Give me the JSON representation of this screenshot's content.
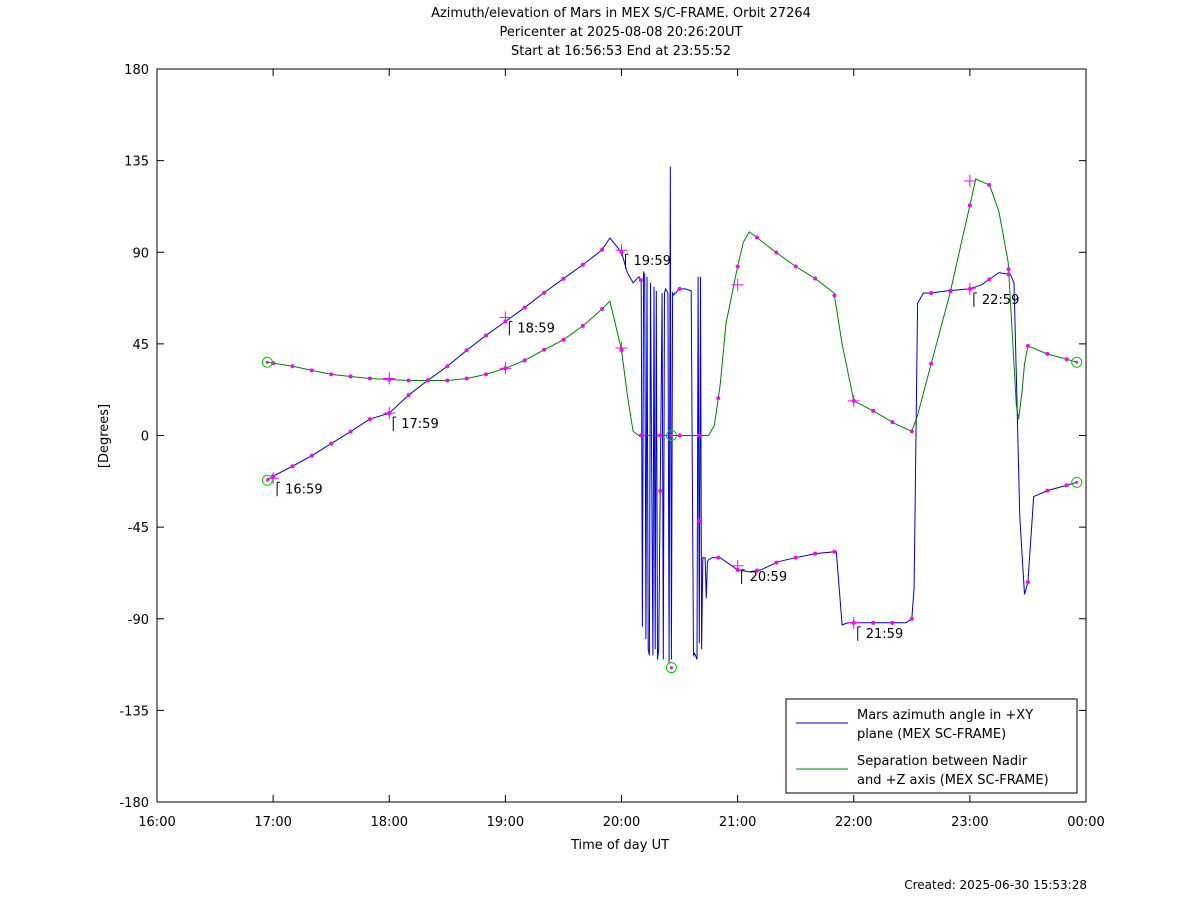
{
  "chart_data": {
    "type": "line",
    "title": [
      "Azimuth/elevation of Mars in MEX S/C-FRAME.  Orbit 27264",
      "Pericenter at 2025-08-08 20:26:20UT",
      "Start at 16:56:53 End at 23:55:52"
    ],
    "xlabel": "Time of day UT",
    "ylabel": "[Degrees]",
    "xlim": [
      16,
      24
    ],
    "ylim": [
      -180,
      180
    ],
    "xticks": [
      {
        "v": 16,
        "label": "16:00"
      },
      {
        "v": 17,
        "label": "17:00"
      },
      {
        "v": 18,
        "label": "18:00"
      },
      {
        "v": 19,
        "label": "19:00"
      },
      {
        "v": 20,
        "label": "20:00"
      },
      {
        "v": 21,
        "label": "21:00"
      },
      {
        "v": 22,
        "label": "22:00"
      },
      {
        "v": 23,
        "label": "23:00"
      },
      {
        "v": 24,
        "label": "00:00"
      }
    ],
    "yticks": [
      {
        "v": 180,
        "label": "180"
      },
      {
        "v": 135,
        "label": "135"
      },
      {
        "v": 90,
        "label": "90"
      },
      {
        "v": 45,
        "label": "45"
      },
      {
        "v": 0,
        "label": "0"
      },
      {
        "v": -45,
        "label": "-45"
      },
      {
        "v": -90,
        "label": "-90"
      },
      {
        "v": -135,
        "label": "-135"
      },
      {
        "v": -180,
        "label": "-180"
      }
    ],
    "legend_placement": "bottom-right",
    "series": [
      {
        "name": "Mars azimuth angle in +XY plane (MEX SC-FRAME)",
        "legend_lines": [
          "Mars azimuth angle in +XY",
          "plane (MEX SC-FRAME)"
        ],
        "color": "#0000cc",
        "x": [
          16.95,
          17.0,
          17.17,
          17.33,
          17.5,
          17.67,
          17.83,
          18.0,
          18.17,
          18.33,
          18.5,
          18.67,
          18.83,
          19.0,
          19.17,
          19.33,
          19.5,
          19.67,
          19.83,
          19.9,
          20.0,
          20.05,
          20.1,
          20.15,
          20.17,
          20.18,
          20.19,
          20.2,
          20.21,
          20.22,
          20.23,
          20.24,
          20.25,
          20.27,
          20.28,
          20.29,
          20.3,
          20.31,
          20.32,
          20.35,
          20.36,
          20.37,
          20.38,
          20.4,
          20.41,
          20.42,
          20.43,
          20.44,
          20.45,
          20.46,
          20.47,
          20.48,
          20.5,
          20.55,
          20.6,
          20.62,
          20.63,
          20.65,
          20.66,
          20.67,
          20.68,
          20.69,
          20.7,
          20.72,
          20.73,
          20.74,
          20.75,
          20.78,
          20.85,
          20.95,
          21.0,
          21.1,
          21.2,
          21.35,
          21.5,
          21.67,
          21.85,
          21.9,
          21.95,
          22.0,
          22.17,
          22.33,
          22.45,
          22.5,
          22.52,
          22.55,
          22.6,
          22.67,
          22.8,
          23.0,
          23.1,
          23.25,
          23.35,
          23.38,
          23.4,
          23.43,
          23.47,
          23.5,
          23.55,
          23.67,
          23.8,
          23.92
        ],
        "y": [
          -22,
          -20,
          -15,
          -10,
          -4,
          2,
          8,
          11,
          20,
          27,
          34,
          42,
          49,
          56,
          63,
          70,
          77,
          84,
          91,
          97,
          90,
          80,
          75,
          78,
          76,
          -94,
          80,
          79,
          -100,
          78,
          -105,
          -108,
          75,
          -108,
          73,
          -105,
          71,
          -110,
          -105,
          70,
          -110,
          70,
          72,
          70,
          -112,
          132,
          -110,
          70,
          69,
          70,
          70,
          71,
          72,
          72,
          71,
          -108,
          -107,
          -110,
          78,
          -102,
          78,
          -105,
          -60,
          -60,
          -80,
          -62,
          -61,
          -60,
          -60,
          -64,
          -66,
          -67,
          -66,
          -62,
          -60,
          -58,
          -57,
          -93,
          -92,
          -92,
          -92,
          -92,
          -92,
          -90,
          -75,
          65,
          70,
          70,
          71,
          72,
          74,
          80,
          79,
          75,
          30,
          -40,
          -78,
          -72,
          -30,
          -27,
          -25,
          -23
        ]
      },
      {
        "name": "Separation between Nadir and +Z axis (MEX SC-FRAME)",
        "legend_lines": [
          "Separation between Nadir",
          "and +Z axis (MEX SC-FRAME)"
        ],
        "color": "#008000",
        "x": [
          16.95,
          17.17,
          17.33,
          17.5,
          17.67,
          17.83,
          18.0,
          18.17,
          18.33,
          18.5,
          18.67,
          18.83,
          19.0,
          19.17,
          19.33,
          19.5,
          19.67,
          19.83,
          19.9,
          20.0,
          20.05,
          20.1,
          20.15,
          20.2,
          20.3,
          20.4,
          20.5,
          20.6,
          20.67,
          20.75,
          20.8,
          20.85,
          20.9,
          21.0,
          21.05,
          21.1,
          21.15,
          21.33,
          21.5,
          21.67,
          21.83,
          21.9,
          22.0,
          22.17,
          22.35,
          22.5,
          22.55,
          22.67,
          22.83,
          22.9,
          23.0,
          23.05,
          23.17,
          23.25,
          23.33,
          23.35,
          23.38,
          23.4,
          23.42,
          23.45,
          23.47,
          23.5,
          23.67,
          23.8,
          23.92
        ],
        "y": [
          36,
          34,
          32,
          30,
          29,
          28,
          27.5,
          27,
          27,
          27,
          28,
          30,
          33,
          37,
          42,
          47,
          54,
          62,
          66,
          42,
          20,
          2,
          0,
          0,
          0,
          0,
          0,
          0,
          0,
          0,
          5,
          25,
          55,
          83,
          95,
          100,
          98,
          90,
          83,
          77,
          70,
          45,
          17,
          12,
          6,
          2,
          10,
          36,
          70,
          88,
          113,
          126,
          123,
          110,
          85,
          65,
          35,
          15,
          8,
          22,
          35,
          44,
          40,
          38,
          36
        ]
      }
    ],
    "markers_cross": [
      {
        "x": 17.0,
        "y": -21
      },
      {
        "x": 18.0,
        "y": 11
      },
      {
        "x": 19.0,
        "y": 58
      },
      {
        "x": 20.0,
        "y": 91
      },
      {
        "x": 21.0,
        "y": -64
      },
      {
        "x": 22.0,
        "y": -92
      },
      {
        "x": 23.0,
        "y": 72
      },
      {
        "x": 18.0,
        "y": 28
      },
      {
        "x": 19.0,
        "y": 33
      },
      {
        "x": 20.0,
        "y": 43
      },
      {
        "x": 21.0,
        "y": 74
      },
      {
        "x": 22.0,
        "y": 17
      },
      {
        "x": 23.0,
        "y": 125
      }
    ],
    "markers_circle": [
      {
        "x": 16.95,
        "y": 36
      },
      {
        "x": 16.95,
        "y": -22
      },
      {
        "x": 20.43,
        "y": 0
      },
      {
        "x": 20.43,
        "y": -114
      },
      {
        "x": 23.92,
        "y": 36
      },
      {
        "x": 23.92,
        "y": -23
      }
    ],
    "annotations": [
      {
        "x": 17.0,
        "y": -21,
        "label": "16:59"
      },
      {
        "x": 18.0,
        "y": 11,
        "label": "17:59"
      },
      {
        "x": 19.0,
        "y": 58,
        "label": "18:59"
      },
      {
        "x": 20.0,
        "y": 91,
        "label": "19:59"
      },
      {
        "x": 21.0,
        "y": -64,
        "label": "20:59"
      },
      {
        "x": 22.0,
        "y": -92,
        "label": "21:59"
      },
      {
        "x": 23.0,
        "y": 72,
        "label": "22:59"
      }
    ],
    "grid": false
  },
  "footer": {
    "created": "Created: 2025-06-30 15:53:28"
  }
}
